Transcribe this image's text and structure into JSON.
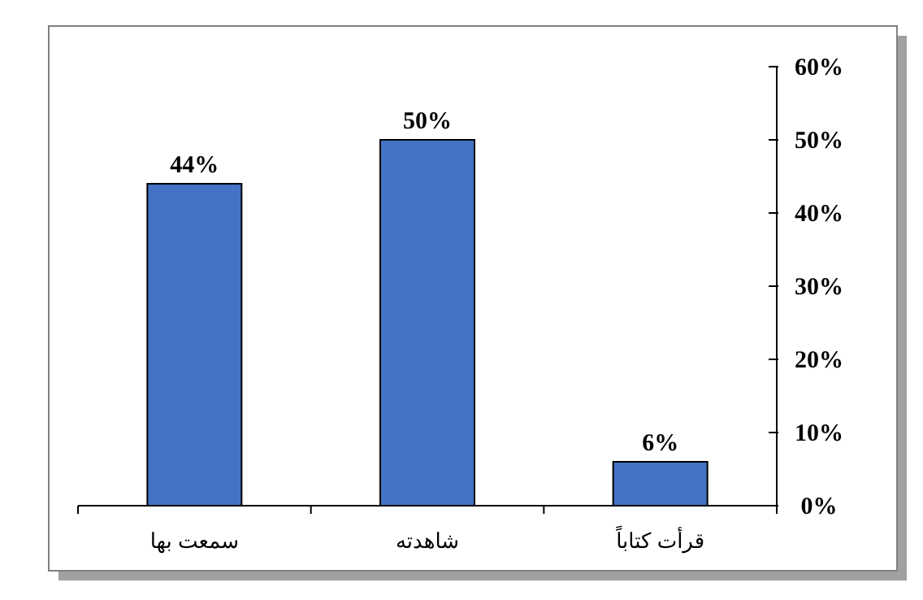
{
  "chart_data": {
    "type": "bar",
    "categories": [
      "سمعت بها",
      "شاهدته",
      "قرأت كتاباً"
    ],
    "values": [
      44,
      50,
      6
    ],
    "value_labels": [
      "44%",
      "50%",
      "6%"
    ],
    "color": "#4472c4",
    "ylim": [
      0,
      60
    ],
    "yticks": [
      {
        "value": 0,
        "label": "0%"
      },
      {
        "value": 10,
        "label": "10%"
      },
      {
        "value": 20,
        "label": "20%"
      },
      {
        "value": 30,
        "label": "30%"
      },
      {
        "value": 40,
        "label": "40%"
      },
      {
        "value": 50,
        "label": "50%"
      },
      {
        "value": 60,
        "label": "60%"
      }
    ],
    "grid": false
  }
}
